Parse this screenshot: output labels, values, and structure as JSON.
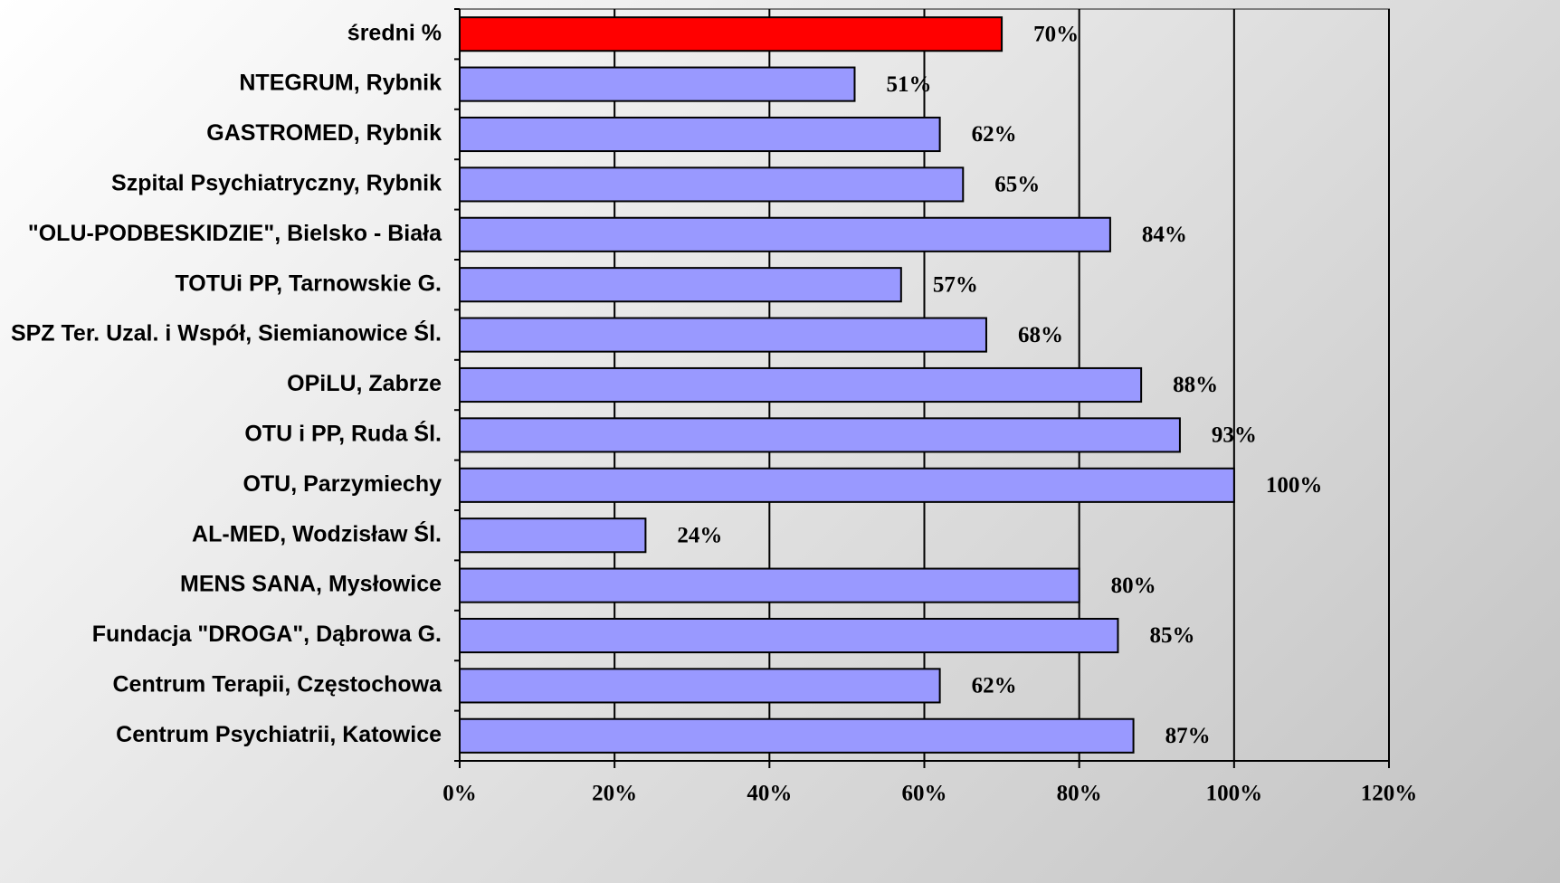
{
  "chart_data": {
    "type": "barh",
    "categories": [
      "średni %",
      "NTEGRUM, Rybnik",
      "GASTROMED, Rybnik",
      "Szpital Psychiatryczny, Rybnik",
      "\"OLU-PODBESKIDZIE\",  Bielsko - Biała",
      "TOTUi PP,  Tarnowskie G.",
      "SPZ Ter. Uzal. i Współ, Siemianowice Śl.",
      "OPiLU, Zabrze",
      "OTU i PP,  Ruda Śl.",
      "OTU, Parzymiechy",
      "AL-MED, Wodzisław Śl.",
      "MENS SANA,  Mysłowice",
      "Fundacja \"DROGA\", Dąbrowa G.",
      "Centrum Terapii, Częstochowa",
      "Centrum Psychiatrii, Katowice"
    ],
    "values": [
      70,
      51,
      62,
      65,
      84,
      57,
      68,
      88,
      93,
      100,
      24,
      80,
      85,
      62,
      87
    ],
    "value_labels": [
      "70%",
      "51%",
      "62%",
      "65%",
      "84%",
      "57%",
      "68%",
      "88%",
      "93%",
      "100%",
      "24%",
      "80%",
      "85%",
      "62%",
      "87%"
    ],
    "colors": [
      "#ff0000",
      "#9999ff",
      "#9999ff",
      "#9999ff",
      "#9999ff",
      "#9999ff",
      "#9999ff",
      "#9999ff",
      "#9999ff",
      "#9999ff",
      "#9999ff",
      "#9999ff",
      "#9999ff",
      "#9999ff",
      "#9999ff"
    ],
    "xlim": [
      0,
      120
    ],
    "xticks": [
      {
        "value": 0,
        "label": "0%"
      },
      {
        "value": 20,
        "label": "20%"
      },
      {
        "value": 40,
        "label": "40%"
      },
      {
        "value": 60,
        "label": "60%"
      },
      {
        "value": 80,
        "label": "80%"
      },
      {
        "value": 100,
        "label": "100%"
      },
      {
        "value": 120,
        "label": "120%"
      }
    ],
    "grid": true
  }
}
